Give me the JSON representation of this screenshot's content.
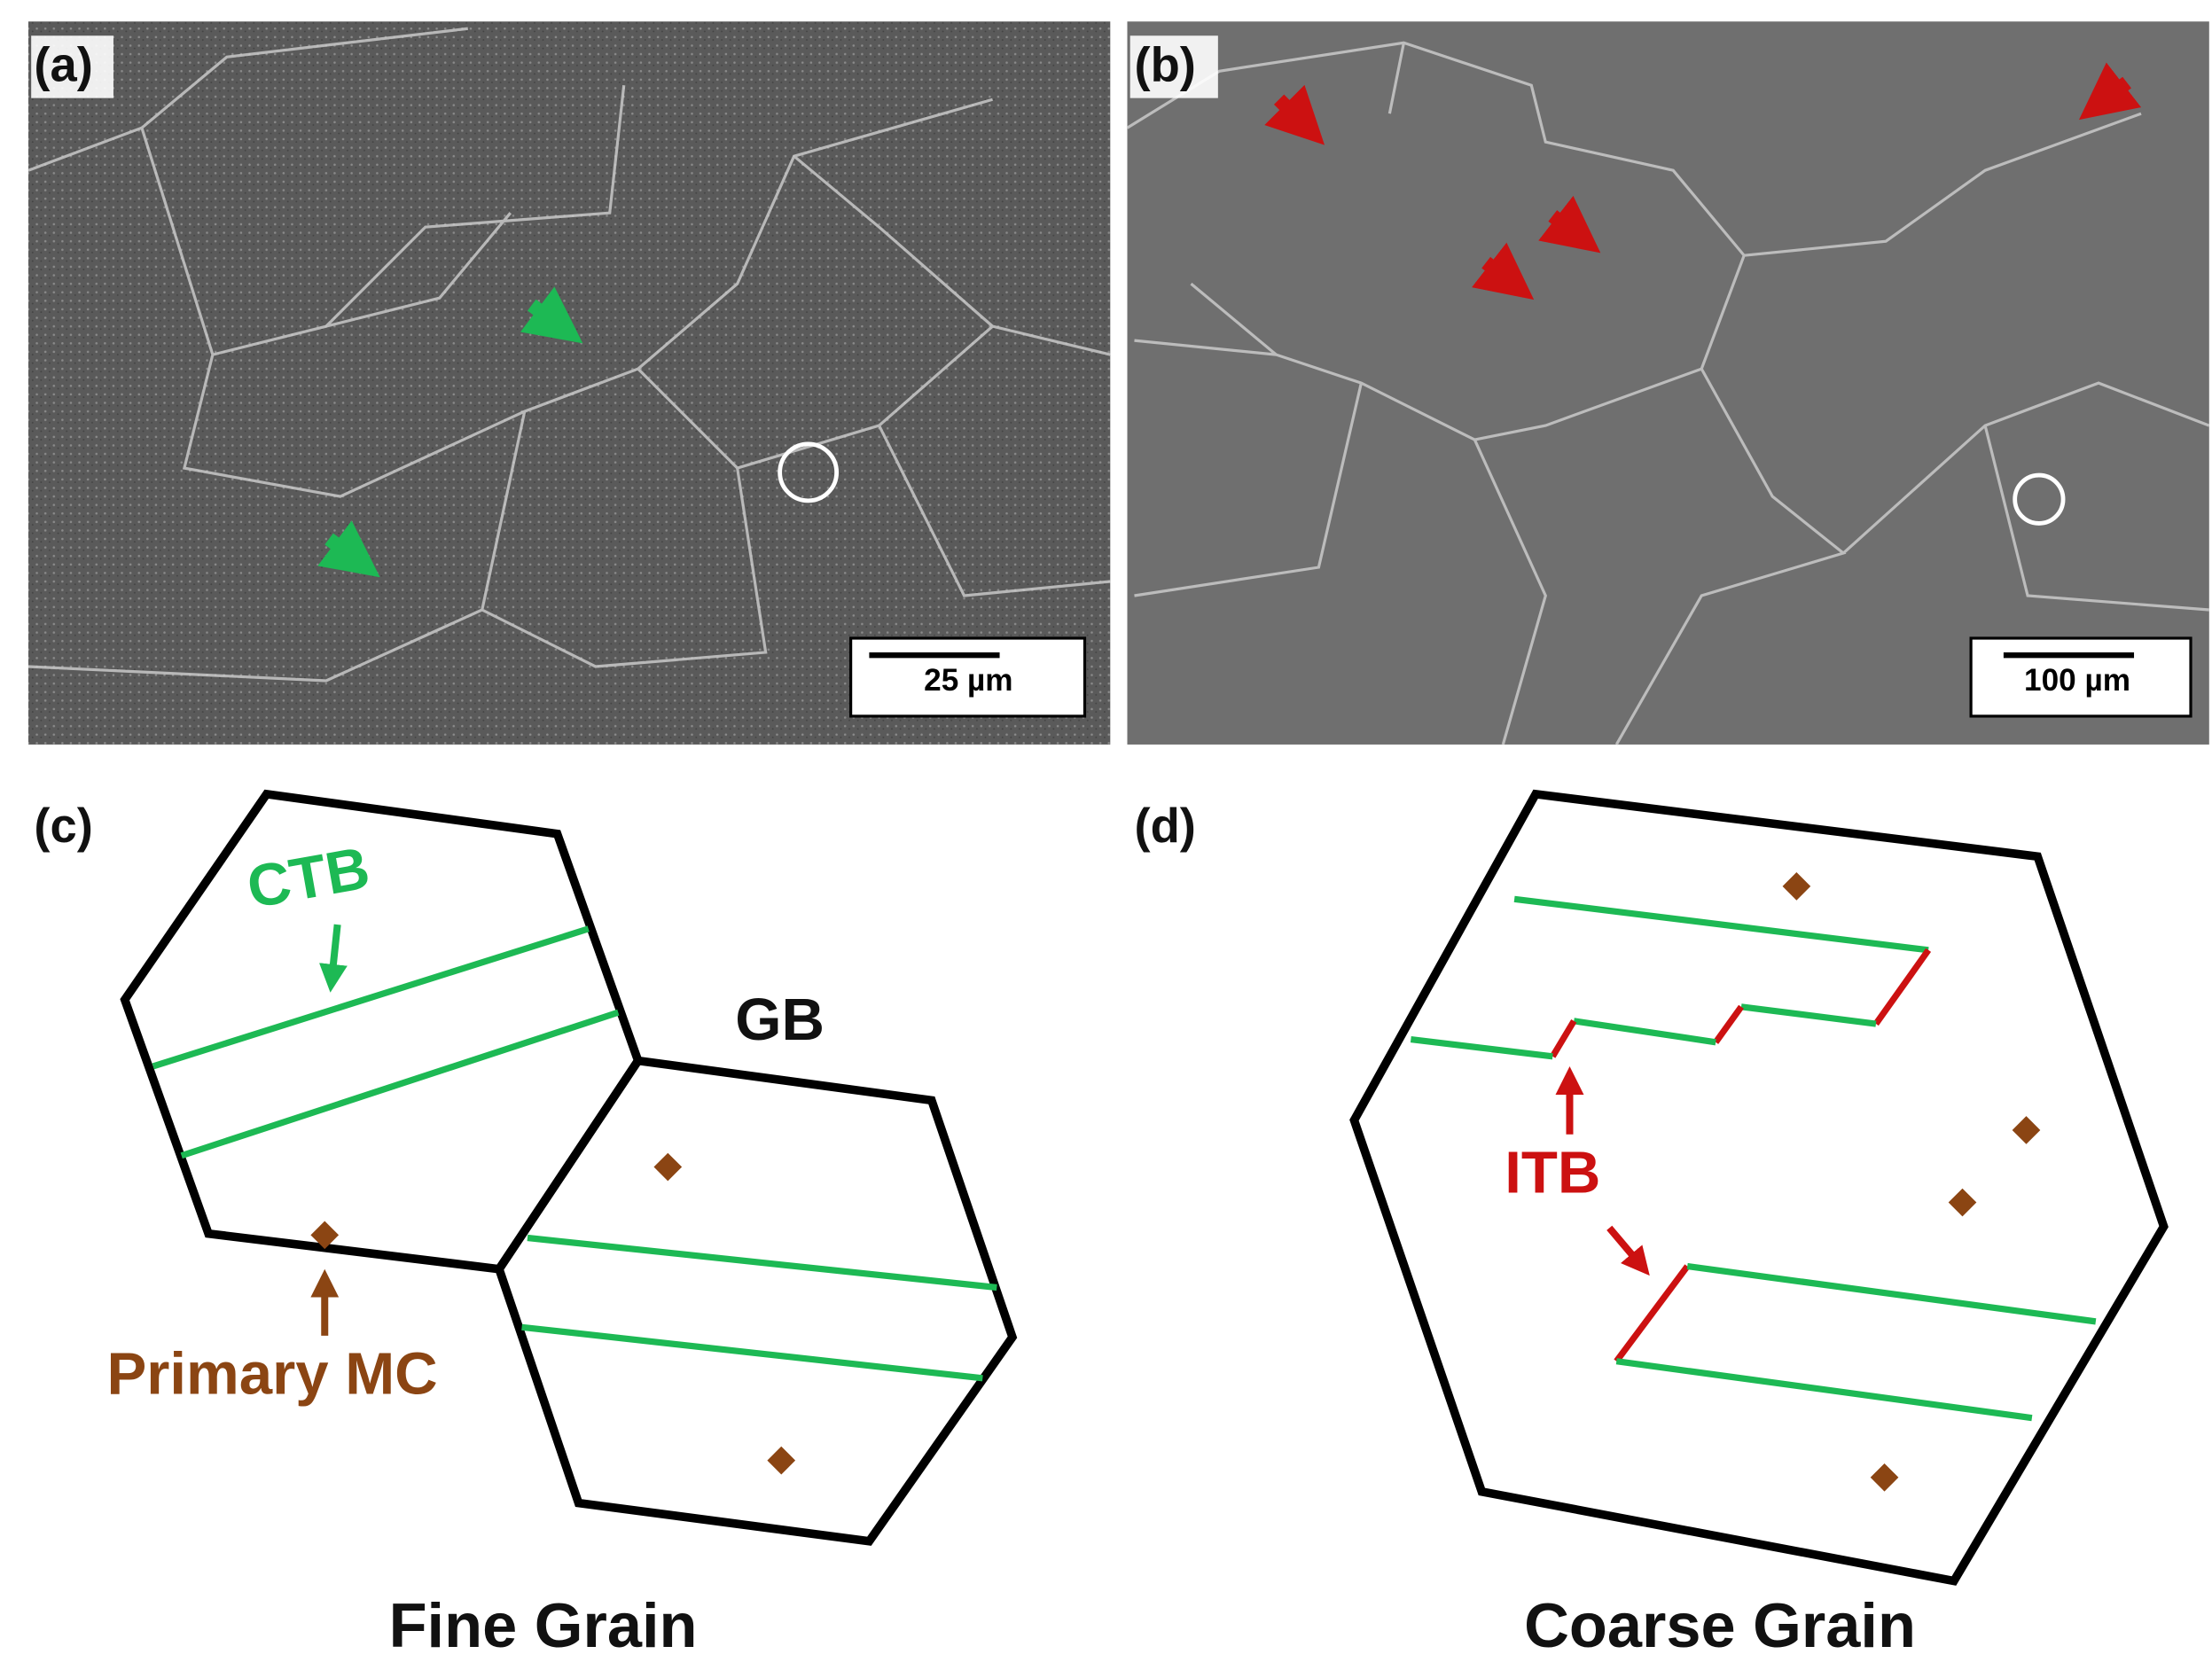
{
  "panels": {
    "a": {
      "label": "(a)",
      "scale_bar": "25 µm"
    },
    "b": {
      "label": "(b)",
      "scale_bar": "100 µm"
    },
    "c": {
      "label": "(c)",
      "ctb": "CTB",
      "gb": "GB",
      "mc": "Primary MC",
      "caption": "Fine Grain"
    },
    "d": {
      "label": "(d)",
      "itb": "ITB",
      "caption": "Coarse Grain"
    }
  }
}
